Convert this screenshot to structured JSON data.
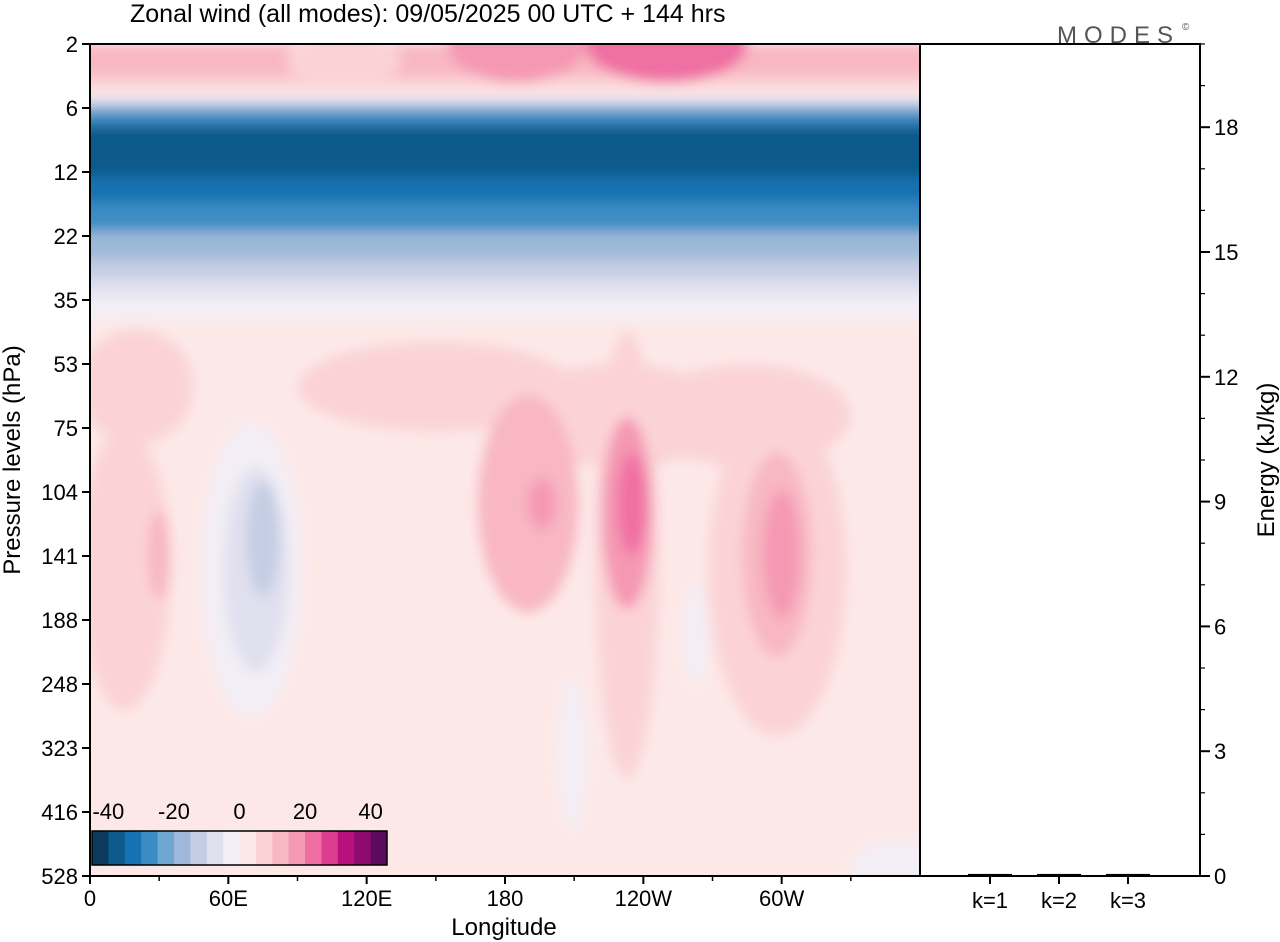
{
  "chart_data": {
    "type": "heatmap",
    "title": "Zonal wind (all modes):  09/05/2025  00 UTC  + 144 hrs",
    "logo": "MODES",
    "logo_mark": "©",
    "xlabel": "Longitude",
    "ylabel": "Pressure levels (hPa)",
    "y2label": "Energy (kJ/kg)",
    "x_ticks": [
      "0",
      "60E",
      "120E",
      "180",
      "120W",
      "60W"
    ],
    "x_tick_values": [
      0,
      60,
      120,
      180,
      240,
      300
    ],
    "xlim": [
      0,
      360
    ],
    "y_ticks": [
      "2",
      "6",
      "12",
      "22",
      "35",
      "53",
      "75",
      "104",
      "141",
      "188",
      "248",
      "323",
      "416",
      "528"
    ],
    "y_scale": "pressure levels (inverted, top = 2 hPa)",
    "y2_ticks": [
      "0",
      "3",
      "6",
      "9",
      "12",
      "15",
      "18"
    ],
    "y2_tick_values": [
      0,
      3,
      6,
      9,
      12,
      15,
      18
    ],
    "y2lim": [
      0,
      20
    ],
    "bar_categories": [
      "k=1",
      "k=2",
      "k=3"
    ],
    "bar_values": [
      0.05,
      0.05,
      0.05
    ],
    "colorbar": {
      "ticks": [
        "-40",
        "-20",
        "0",
        "20",
        "40"
      ],
      "tick_values": [
        -40,
        -20,
        0,
        20,
        40
      ],
      "range": [
        -45,
        45
      ],
      "step": 5,
      "colors": [
        "#0b3a5c",
        "#0d5a8c",
        "#1672b0",
        "#3a8dc4",
        "#6ea8d1",
        "#9db8d8",
        "#c4cde3",
        "#e0e0ef",
        "#f3eef5",
        "#fde8e8",
        "#fbd3d6",
        "#f8b7c2",
        "#f598b3",
        "#ef6fa3",
        "#dc3d8e",
        "#b8117c",
        "#8f0a70",
        "#5c0a5e"
      ]
    },
    "wind_features": [
      {
        "name": "stratospheric easterly jet",
        "lon_range": [
          0,
          360
        ],
        "level_range": [
          7,
          12
        ],
        "value": -38
      },
      {
        "name": "upper stratosphere westerly",
        "lon_range": [
          160,
          320
        ],
        "level": 2,
        "value": 15
      },
      {
        "name": "westerly maximum",
        "lon": 233,
        "level": 110,
        "value": 24
      },
      {
        "name": "westerly maximum",
        "lon": 298,
        "level": 140,
        "value": 19
      },
      {
        "name": "westerly maximum",
        "lon": 196,
        "level": 110,
        "value": 18
      },
      {
        "name": "easterly region",
        "lon": 72,
        "level": 140,
        "value": -12
      },
      {
        "name": "easterly region",
        "lon": 209,
        "level": 330,
        "value": -5
      },
      {
        "name": "easterly region",
        "lon": 264,
        "level": 200,
        "value": -5
      }
    ]
  }
}
